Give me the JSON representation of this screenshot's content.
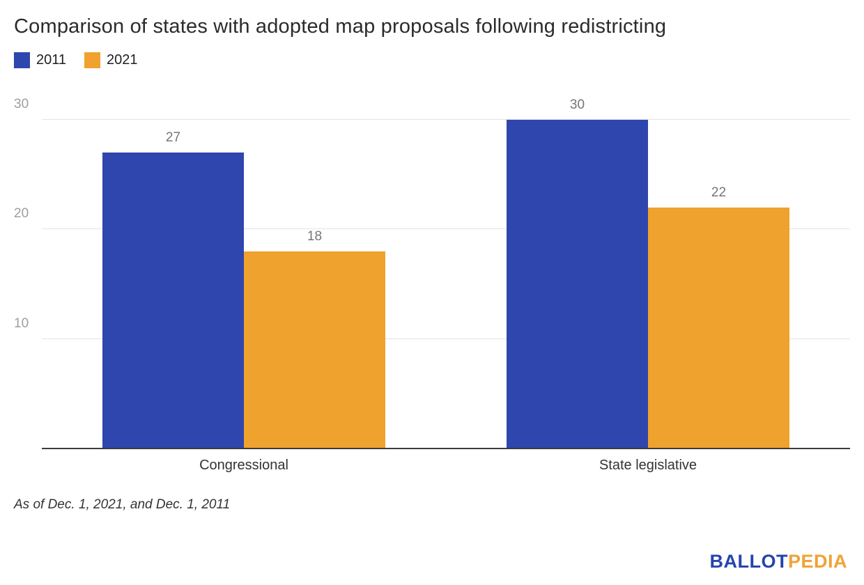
{
  "title": "Comparison of states with adopted map proposals following redistricting",
  "footnote": "As of Dec. 1, 2021, and Dec. 1, 2011",
  "logo": {
    "part1": "BALLOT",
    "part2": "PEDIA"
  },
  "colors": {
    "series_2011": "#2e46ad",
    "series_2021": "#efa22d",
    "gridline": "#e3e3e3",
    "axis_line": "#3c3c3c",
    "logo_blue": "#2545ac",
    "logo_orange": "#f0a236"
  },
  "chart_data": {
    "type": "bar",
    "title": "Comparison of states with adopted map proposals following redistricting",
    "categories": [
      "Congressional",
      "State legislative"
    ],
    "series": [
      {
        "name": "2011",
        "color": "#2e46ad",
        "values": [
          27,
          30
        ]
      },
      {
        "name": "2021",
        "color": "#efa22d",
        "values": [
          18,
          22
        ]
      }
    ],
    "xlabel": "",
    "ylabel": "",
    "ylim": [
      0,
      32
    ],
    "yticks": [
      10,
      20,
      30
    ],
    "grid": true,
    "legend_position": "top-left"
  }
}
